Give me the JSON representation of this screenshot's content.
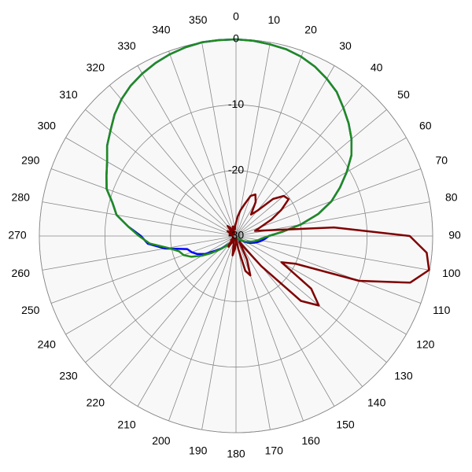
{
  "chart_data": {
    "type": "polar",
    "x": [
      0,
      5,
      10,
      15,
      20,
      25,
      30,
      35,
      40,
      45,
      50,
      55,
      60,
      65,
      70,
      75,
      80,
      85,
      90,
      95,
      100,
      105,
      110,
      115,
      120,
      125,
      130,
      135,
      140,
      145,
      150,
      155,
      160,
      165,
      170,
      175,
      180,
      185,
      190,
      195,
      200,
      205,
      210,
      215,
      220,
      225,
      230,
      235,
      240,
      245,
      250,
      255,
      260,
      265,
      270,
      275,
      280,
      285,
      290,
      295,
      300,
      305,
      310,
      315,
      320,
      325,
      330,
      335,
      340,
      345,
      350,
      355
    ],
    "xticks": [
      0,
      10,
      20,
      30,
      40,
      50,
      60,
      70,
      80,
      90,
      100,
      110,
      120,
      130,
      140,
      150,
      160,
      170,
      180,
      190,
      200,
      210,
      220,
      230,
      240,
      250,
      260,
      270,
      280,
      290,
      300,
      310,
      320,
      330,
      340,
      350
    ],
    "ylim": [
      -30,
      0
    ],
    "yticks": [
      0,
      -10,
      -20,
      -30
    ],
    "grid": true,
    "series": [
      {
        "color": "#0000ff",
        "values": [
          0,
          -0.1,
          -0.3,
          -0.5,
          -0.9,
          -1.5,
          -2.3,
          -3.2,
          -4.5,
          -5.7,
          -7.0,
          -8.5,
          -10.5,
          -12.5,
          -14.5,
          -17,
          -20,
          -23,
          -25,
          -25.5,
          -26,
          -26.5,
          -27,
          -27.5,
          -28,
          -28.5,
          -29,
          -29,
          -29.2,
          -29.4,
          -29.5,
          -29.5,
          -29.5,
          -29.5,
          -29.5,
          -29.5,
          -29.5,
          -29.5,
          -29.5,
          -29.5,
          -29.5,
          -29.5,
          -29.3,
          -29,
          -28.5,
          -28,
          -27,
          -26,
          -24.5,
          -23.5,
          -22.8,
          -22.3,
          -19,
          -16.5,
          -15.5,
          -13.5,
          -11.5,
          -10.5,
          -9,
          -8.2,
          -7.3,
          -6,
          -5,
          -3.8,
          -2.8,
          -2,
          -1.4,
          -0.9,
          -0.5,
          -0.2,
          0,
          0
        ]
      },
      {
        "color": "#1e8c1e",
        "values": [
          0,
          -0.1,
          -0.3,
          -0.5,
          -0.9,
          -1.5,
          -2.3,
          -3.2,
          -4.5,
          -5.7,
          -7.0,
          -8.5,
          -10.5,
          -12.5,
          -14.5,
          -17,
          -20,
          -23,
          -25,
          -26,
          -26.5,
          -27,
          -27.5,
          -28,
          -28.3,
          -28.7,
          -29,
          -29.2,
          -29.3,
          -29.4,
          -29.5,
          -29.5,
          -29.5,
          -29.5,
          -29.5,
          -29.5,
          -29.5,
          -29.5,
          -29.5,
          -29.5,
          -29.5,
          -29.5,
          -29.3,
          -29,
          -28.5,
          -27.8,
          -26.8,
          -25.5,
          -24,
          -22.5,
          -21.5,
          -21,
          -19.5,
          -16.8,
          -15.2,
          -13.5,
          -11.5,
          -10.5,
          -9,
          -8.2,
          -7.3,
          -6,
          -5,
          -3.8,
          -2.8,
          -2,
          -1.4,
          -0.9,
          -0.5,
          -0.2,
          0,
          0
        ]
      },
      {
        "color": "#800000",
        "values": [
          -28,
          -27,
          -26,
          -25,
          -23.5,
          -23,
          -24,
          -26,
          -25,
          -22,
          -20.5,
          -20.2,
          -22,
          -24,
          -26,
          -27,
          -25,
          -15,
          -3.5,
          -0.8,
          -0.1,
          -2.5,
          -10,
          -20,
          -22,
          -16,
          -13.5,
          -16,
          -24,
          -28,
          -29,
          -26,
          -23.6,
          -24.5,
          -28,
          -29.5,
          -29,
          -28,
          -27,
          -28.5,
          -29,
          -29.5,
          -29,
          -28,
          -28.5,
          -29.5,
          -29,
          -29.5,
          -29.5,
          -29.5,
          -29.5,
          -29.5,
          -29.5,
          -29.5,
          -29.5,
          -29.5,
          -29,
          -29,
          -29.5,
          -29,
          -28.5,
          -29,
          -29.5,
          -29,
          -28,
          -28.5,
          -29.5,
          -29,
          -28.5,
          -28.5,
          -29,
          -28.5
        ]
      }
    ]
  }
}
